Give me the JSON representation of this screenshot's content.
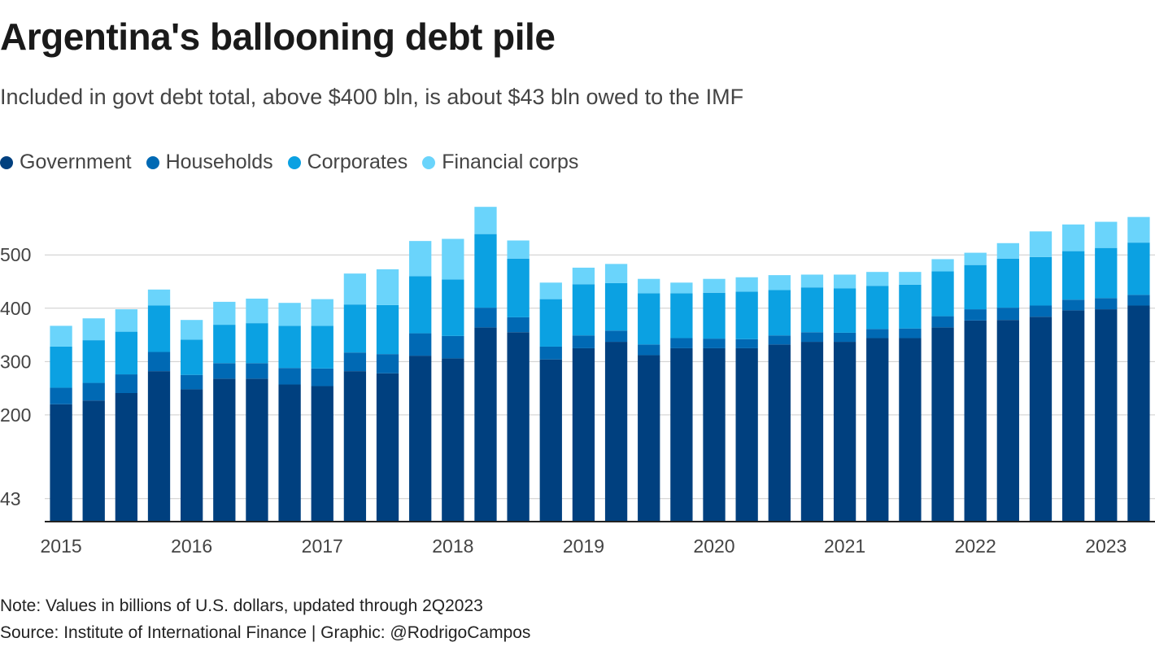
{
  "title": "Argentina's ballooning debt pile",
  "subtitle": "Included in govt debt total, above $400 bln, is about $43 bln owed to the IMF",
  "note": "Note: Values in billions of U.S. dollars, updated through 2Q2023",
  "source": "Source: Institute of International Finance | Graphic: @RodrigoCampos",
  "colors": {
    "Government": "#00407f",
    "Households": "#0069b4",
    "Corporates": "#0ba1e2",
    "Financial corps": "#6ad4fb",
    "grid": "#cccccc",
    "axis": "#222222"
  },
  "chart_data": {
    "type": "bar",
    "stacked": true,
    "x": [
      "1Q2015",
      "2Q2015",
      "3Q2015",
      "4Q2015",
      "1Q2016",
      "2Q2016",
      "3Q2016",
      "4Q2016",
      "1Q2017",
      "2Q2017",
      "3Q2017",
      "4Q2017",
      "1Q2018",
      "2Q2018",
      "3Q2018",
      "4Q2018",
      "1Q2019",
      "2Q2019",
      "3Q2019",
      "4Q2019",
      "1Q2020",
      "2Q2020",
      "3Q2020",
      "4Q2020",
      "1Q2021",
      "2Q2021",
      "3Q2021",
      "4Q2021",
      "1Q2022",
      "2Q2022",
      "3Q2022",
      "4Q2022",
      "1Q2023",
      "2Q2023"
    ],
    "x_tick_labels": [
      {
        "label": "2015",
        "index": 0
      },
      {
        "label": "2016",
        "index": 4
      },
      {
        "label": "2017",
        "index": 8
      },
      {
        "label": "2018",
        "index": 12
      },
      {
        "label": "2019",
        "index": 16
      },
      {
        "label": "2020",
        "index": 20
      },
      {
        "label": "2021",
        "index": 24
      },
      {
        "label": "2022",
        "index": 28
      },
      {
        "label": "2023",
        "index": 32
      }
    ],
    "y_ticks": [
      43,
      200,
      300,
      400,
      500
    ],
    "ylim": [
      0,
      575
    ],
    "grid": true,
    "legend_position": "top-left",
    "series": [
      {
        "name": "Government",
        "values": [
          220,
          227,
          241,
          282,
          248,
          268,
          268,
          257,
          254,
          282,
          278,
          311,
          306,
          364,
          355,
          304,
          325,
          337,
          312,
          325,
          325,
          325,
          332,
          337,
          337,
          344,
          344,
          364,
          377,
          378,
          384,
          396,
          398,
          405
        ]
      },
      {
        "name": "Households",
        "values": [
          31,
          33,
          35,
          36,
          27,
          29,
          29,
          31,
          33,
          35,
          36,
          42,
          42,
          37,
          28,
          24,
          24,
          21,
          20,
          19,
          18,
          17,
          17,
          18,
          17,
          17,
          18,
          21,
          21,
          23,
          21,
          20,
          21,
          20
        ]
      },
      {
        "name": "Corporates",
        "values": [
          77,
          80,
          80,
          87,
          66,
          72,
          75,
          79,
          80,
          90,
          92,
          107,
          106,
          138,
          110,
          89,
          96,
          89,
          96,
          84,
          86,
          89,
          85,
          84,
          83,
          81,
          82,
          84,
          83,
          92,
          91,
          91,
          94,
          98
        ]
      },
      {
        "name": "Financial corps",
        "values": [
          39,
          41,
          42,
          30,
          37,
          43,
          46,
          43,
          50,
          58,
          67,
          66,
          76,
          51,
          34,
          31,
          31,
          36,
          27,
          20,
          26,
          27,
          28,
          24,
          26,
          26,
          24,
          23,
          23,
          29,
          48,
          50,
          49,
          48
        ]
      }
    ]
  }
}
